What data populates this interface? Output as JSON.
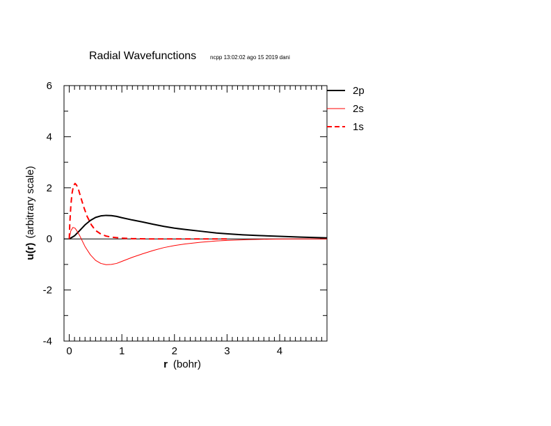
{
  "chart_data": {
    "type": "line",
    "title": "Radial Wavefunctions",
    "subtitle": "ncpp 13:02:02 ago 15 2019 dani",
    "xlabel_bold": "r",
    "xlabel_rest": "(bohr)",
    "ylabel_bold": "u(r)",
    "ylabel_rest": "(arbitrary scale)",
    "xlim": [
      -0.1,
      4.9
    ],
    "ylim": [
      -4,
      6
    ],
    "x_ticks": [
      0,
      1,
      2,
      3,
      4
    ],
    "x_tick_labels": [
      "0",
      "1",
      "2",
      "3",
      "4"
    ],
    "y_ticks": [
      -4,
      -2,
      0,
      2,
      4,
      6
    ],
    "y_tick_labels": [
      "-4",
      "-2",
      "0",
      "2",
      "4",
      "6"
    ],
    "grid": false,
    "legend_position": "right-top",
    "series": [
      {
        "name": "2p",
        "color": "#000000",
        "style": "solid-thick",
        "points": [
          [
            0,
            0
          ],
          [
            0.1,
            0.12
          ],
          [
            0.2,
            0.33
          ],
          [
            0.3,
            0.55
          ],
          [
            0.4,
            0.72
          ],
          [
            0.5,
            0.84
          ],
          [
            0.6,
            0.9
          ],
          [
            0.7,
            0.92
          ],
          [
            0.8,
            0.91
          ],
          [
            0.9,
            0.88
          ],
          [
            1.0,
            0.83
          ],
          [
            1.2,
            0.74
          ],
          [
            1.4,
            0.66
          ],
          [
            1.6,
            0.57
          ],
          [
            1.8,
            0.49
          ],
          [
            2.0,
            0.42
          ],
          [
            2.2,
            0.37
          ],
          [
            2.5,
            0.3
          ],
          [
            2.8,
            0.23
          ],
          [
            3.0,
            0.2
          ],
          [
            3.3,
            0.16
          ],
          [
            3.6,
            0.13
          ],
          [
            4.0,
            0.1
          ],
          [
            4.4,
            0.07
          ],
          [
            4.9,
            0.04
          ]
        ]
      },
      {
        "name": "2s",
        "color": "#ff0000",
        "style": "solid-thin",
        "points": [
          [
            0,
            0
          ],
          [
            0.03,
            0.32
          ],
          [
            0.07,
            0.45
          ],
          [
            0.11,
            0.42
          ],
          [
            0.15,
            0.3
          ],
          [
            0.2,
            0.12
          ],
          [
            0.3,
            -0.3
          ],
          [
            0.4,
            -0.62
          ],
          [
            0.5,
            -0.84
          ],
          [
            0.6,
            -0.96
          ],
          [
            0.7,
            -1.01
          ],
          [
            0.8,
            -1.0
          ],
          [
            0.9,
            -0.96
          ],
          [
            1.0,
            -0.88
          ],
          [
            1.2,
            -0.72
          ],
          [
            1.4,
            -0.58
          ],
          [
            1.6,
            -0.45
          ],
          [
            1.8,
            -0.34
          ],
          [
            2.0,
            -0.26
          ],
          [
            2.2,
            -0.2
          ],
          [
            2.5,
            -0.13
          ],
          [
            2.8,
            -0.08
          ],
          [
            3.0,
            -0.06
          ],
          [
            3.4,
            -0.03
          ],
          [
            3.8,
            -0.01
          ],
          [
            4.2,
            0.0
          ],
          [
            4.9,
            0.0
          ]
        ]
      },
      {
        "name": "1s",
        "color": "#ff0000",
        "style": "dashed",
        "points": [
          [
            0,
            0
          ],
          [
            0.01,
            0.6
          ],
          [
            0.03,
            1.3
          ],
          [
            0.05,
            1.75
          ],
          [
            0.08,
            2.08
          ],
          [
            0.11,
            2.17
          ],
          [
            0.14,
            2.1
          ],
          [
            0.18,
            1.9
          ],
          [
            0.22,
            1.62
          ],
          [
            0.28,
            1.22
          ],
          [
            0.34,
            0.88
          ],
          [
            0.42,
            0.55
          ],
          [
            0.5,
            0.33
          ],
          [
            0.6,
            0.19
          ],
          [
            0.7,
            0.11
          ],
          [
            0.8,
            0.07
          ],
          [
            1.0,
            0.03
          ],
          [
            1.2,
            0.01
          ],
          [
            1.5,
            0.0
          ],
          [
            2.0,
            0.0
          ],
          [
            3.0,
            0.0
          ]
        ]
      }
    ]
  }
}
